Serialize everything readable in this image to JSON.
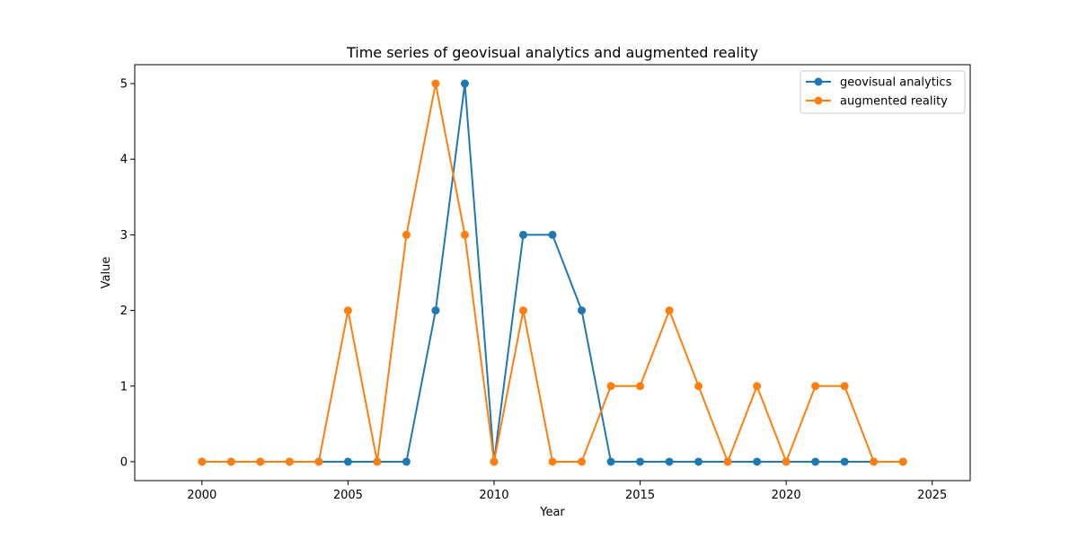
{
  "chart_data": {
    "type": "line",
    "title": "Time series of geovisual analytics and augmented reality",
    "xlabel": "Year",
    "ylabel": "Value",
    "xlim": [
      1997.7,
      2026.3
    ],
    "ylim": [
      -0.25,
      5.25
    ],
    "xticks": [
      2000,
      2005,
      2010,
      2015,
      2020,
      2025
    ],
    "yticks": [
      0,
      1,
      2,
      3,
      4,
      5
    ],
    "grid": false,
    "legend_position": "top-right",
    "x": [
      2000,
      2001,
      2002,
      2003,
      2004,
      2005,
      2006,
      2007,
      2008,
      2009,
      2010,
      2011,
      2012,
      2013,
      2014,
      2015,
      2016,
      2017,
      2018,
      2019,
      2020,
      2021,
      2022,
      2023,
      2024
    ],
    "series": [
      {
        "name": "geovisual analytics",
        "color": "#1f77b4",
        "values": [
          0,
          0,
          0,
          0,
          0,
          0,
          0,
          0,
          2,
          5,
          0,
          3,
          3,
          2,
          0,
          0,
          0,
          0,
          0,
          0,
          0,
          0,
          0,
          0,
          0
        ]
      },
      {
        "name": "augmented reality",
        "color": "#ff7f0e",
        "values": [
          0,
          0,
          0,
          0,
          0,
          2,
          0,
          3,
          5,
          3,
          0,
          2,
          0,
          0,
          1,
          1,
          2,
          1,
          0,
          1,
          0,
          1,
          1,
          0,
          0
        ]
      }
    ]
  }
}
